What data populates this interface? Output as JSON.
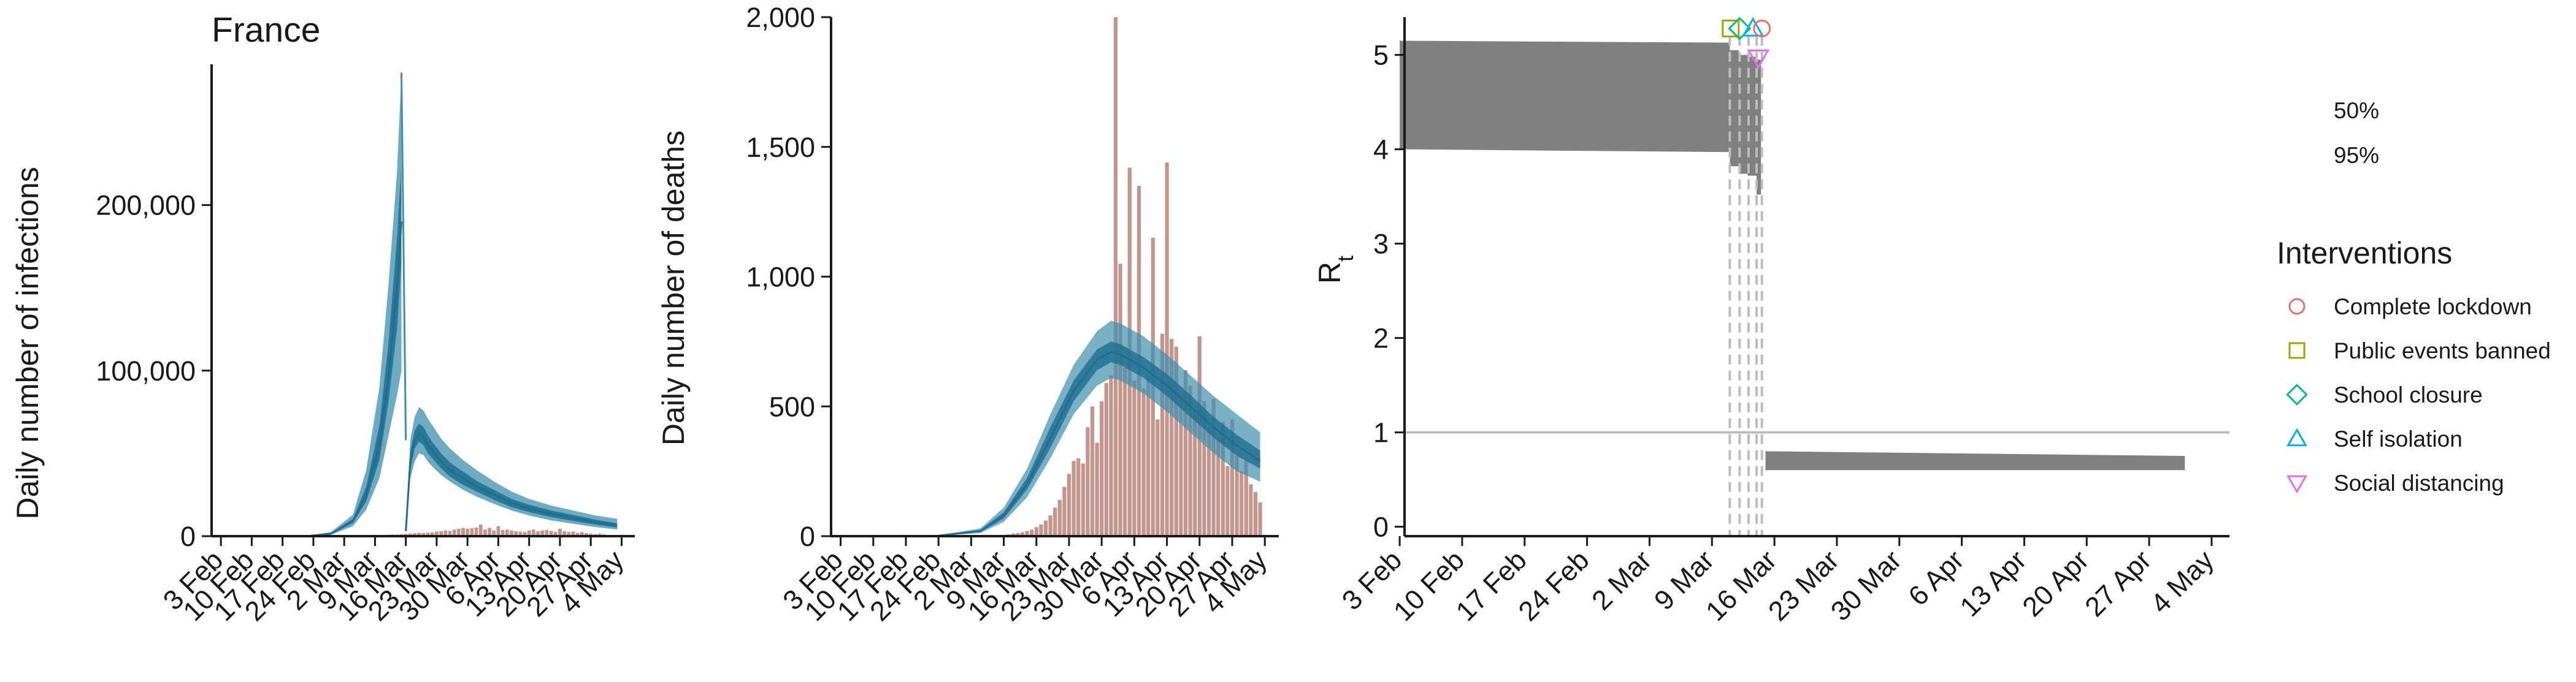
{
  "colors": {
    "band_95": "#3E8FAE",
    "band_50": "#1F6E8F",
    "bar": "#C4958D",
    "rt_band": "#808080",
    "axis": "#1a1a1a",
    "lockdown": "#E8736C",
    "events": "#A3A500",
    "school": "#00BF7D",
    "isolation": "#00B0F6",
    "distancing": "#E76BF3",
    "threshold_line": "#BDBDBD"
  },
  "chart_data": [
    {
      "type": "area",
      "title": "France",
      "ylabel": "Daily number of infections",
      "xlabel": "",
      "x_ticks": [
        "3 Feb",
        "10 Feb",
        "17 Feb",
        "24 Feb",
        "2 Mar",
        "9 Mar",
        "16 Mar",
        "23 Mar",
        "30 Mar",
        "6 Apr",
        "13 Apr",
        "20 Apr",
        "27 Apr",
        "4 May"
      ],
      "y_ticks": [
        "0",
        "100,000",
        "200,000"
      ],
      "ylim": [
        0,
        285000
      ],
      "x_range_days": [
        -1,
        94
      ],
      "infections": {
        "day": [
          0,
          10,
          20,
          25,
          30,
          33,
          36,
          38,
          40,
          41,
          42,
          43,
          44,
          45,
          46,
          47,
          48,
          50,
          52,
          55,
          58,
          62,
          66,
          70,
          75,
          80,
          85,
          90
        ],
        "mean": [
          0,
          5,
          150,
          1500,
          9000,
          25000,
          55000,
          95000,
          150000,
          190000,
          3000,
          45000,
          58000,
          62000,
          60000,
          55000,
          52000,
          45000,
          40000,
          35000,
          30000,
          25000,
          20000,
          16500,
          13500,
          11000,
          8500,
          6500
        ],
        "lo95": [
          0,
          3,
          100,
          900,
          6000,
          16000,
          35000,
          60000,
          85000,
          100000,
          2000,
          35000,
          45000,
          50000,
          49000,
          45000,
          42000,
          37000,
          33000,
          28000,
          24000,
          19500,
          15500,
          12500,
          9500,
          7500,
          5500,
          4000
        ],
        "hi95": [
          0,
          8,
          250,
          2500,
          13000,
          40000,
          90000,
          150000,
          220000,
          280000,
          5000,
          58000,
          72000,
          78000,
          76000,
          71000,
          67000,
          59000,
          53000,
          46000,
          40000,
          33000,
          27000,
          22500,
          18500,
          15500,
          12500,
          10500
        ],
        "lo50": [
          0,
          4,
          130,
          1200,
          8000,
          21000,
          46000,
          80000,
          125000,
          165000,
          2500,
          40000,
          53000,
          57000,
          55000,
          50000,
          47000,
          41000,
          36000,
          31000,
          27000,
          22000,
          17500,
          14500,
          11500,
          9200,
          7000,
          5200
        ],
        "hi50": [
          0,
          6,
          180,
          1900,
          10500,
          30000,
          67000,
          115000,
          180000,
          225000,
          3500,
          51000,
          64000,
          68000,
          66000,
          61000,
          57000,
          50000,
          44500,
          39000,
          33500,
          28000,
          22500,
          19000,
          15500,
          12800,
          10000,
          7800
        ]
      },
      "observed_cases": [
        {
          "day": 36,
          "value": 400
        },
        {
          "day": 37,
          "value": 600
        },
        {
          "day": 38,
          "value": 800
        },
        {
          "day": 39,
          "value": 1000
        },
        {
          "day": 40,
          "value": 900
        },
        {
          "day": 41,
          "value": 1200
        },
        {
          "day": 42,
          "value": 1400
        },
        {
          "day": 43,
          "value": 1600
        },
        {
          "day": 44,
          "value": 1800
        },
        {
          "day": 45,
          "value": 2000
        },
        {
          "day": 46,
          "value": 1900
        },
        {
          "day": 47,
          "value": 2100
        },
        {
          "day": 48,
          "value": 2300
        },
        {
          "day": 49,
          "value": 2800
        },
        {
          "day": 50,
          "value": 3000
        },
        {
          "day": 51,
          "value": 3500
        },
        {
          "day": 52,
          "value": 3200
        },
        {
          "day": 53,
          "value": 4000
        },
        {
          "day": 54,
          "value": 4500
        },
        {
          "day": 55,
          "value": 5000
        },
        {
          "day": 56,
          "value": 4500
        },
        {
          "day": 57,
          "value": 4800
        },
        {
          "day": 58,
          "value": 5200
        },
        {
          "day": 59,
          "value": 7000
        },
        {
          "day": 60,
          "value": 4000
        },
        {
          "day": 61,
          "value": 5000
        },
        {
          "day": 62,
          "value": 3500
        },
        {
          "day": 63,
          "value": 6000
        },
        {
          "day": 64,
          "value": 3800
        },
        {
          "day": 65,
          "value": 4000
        },
        {
          "day": 66,
          "value": 3500
        },
        {
          "day": 67,
          "value": 3000
        },
        {
          "day": 68,
          "value": 2800
        },
        {
          "day": 69,
          "value": 2500
        },
        {
          "day": 70,
          "value": 3500
        },
        {
          "day": 71,
          "value": 4000
        },
        {
          "day": 72,
          "value": 3000
        },
        {
          "day": 73,
          "value": 3500
        },
        {
          "day": 74,
          "value": 3800
        },
        {
          "day": 75,
          "value": 3200
        },
        {
          "day": 76,
          "value": 2500
        },
        {
          "day": 77,
          "value": 4500
        },
        {
          "day": 78,
          "value": 3000
        },
        {
          "day": 79,
          "value": 2500
        },
        {
          "day": 80,
          "value": 2800
        },
        {
          "day": 81,
          "value": 2000
        },
        {
          "day": 82,
          "value": 2500
        },
        {
          "day": 83,
          "value": 1800
        },
        {
          "day": 84,
          "value": 1500
        },
        {
          "day": 85,
          "value": 1200
        },
        {
          "day": 86,
          "value": 1500
        },
        {
          "day": 87,
          "value": 1000
        }
      ]
    },
    {
      "type": "bar",
      "ylabel": "Daily number of deaths",
      "xlabel": "",
      "x_ticks": [
        "3 Feb",
        "10 Feb",
        "17 Feb",
        "24 Feb",
        "2 Mar",
        "9 Mar",
        "16 Mar",
        "23 Mar",
        "30 Mar",
        "6 Apr",
        "13 Apr",
        "20 Apr",
        "27 Apr",
        "4 May"
      ],
      "y_ticks": [
        "0",
        "500",
        "1,000",
        "1,500",
        "2,000"
      ],
      "ylim": [
        0,
        2000
      ],
      "x_range_days": [
        -1,
        94
      ],
      "deaths": [
        {
          "day": 35,
          "value": 5
        },
        {
          "day": 36,
          "value": 7
        },
        {
          "day": 37,
          "value": 10
        },
        {
          "day": 38,
          "value": 12
        },
        {
          "day": 39,
          "value": 15
        },
        {
          "day": 40,
          "value": 20
        },
        {
          "day": 41,
          "value": 25
        },
        {
          "day": 42,
          "value": 35
        },
        {
          "day": 43,
          "value": 45
        },
        {
          "day": 44,
          "value": 60
        },
        {
          "day": 45,
          "value": 80
        },
        {
          "day": 46,
          "value": 110
        },
        {
          "day": 47,
          "value": 140
        },
        {
          "day": 48,
          "value": 190
        },
        {
          "day": 49,
          "value": 240
        },
        {
          "day": 50,
          "value": 290
        },
        {
          "day": 51,
          "value": 300
        },
        {
          "day": 52,
          "value": 280
        },
        {
          "day": 53,
          "value": 420
        },
        {
          "day": 54,
          "value": 500
        },
        {
          "day": 55,
          "value": 360
        },
        {
          "day": 56,
          "value": 520
        },
        {
          "day": 57,
          "value": 590
        },
        {
          "day": 58,
          "value": 620
        },
        {
          "day": 59,
          "value": 2000
        },
        {
          "day": 60,
          "value": 1050
        },
        {
          "day": 61,
          "value": 650
        },
        {
          "day": 62,
          "value": 1420
        },
        {
          "day": 63,
          "value": 600
        },
        {
          "day": 64,
          "value": 1350
        },
        {
          "day": 65,
          "value": 570
        },
        {
          "day": 66,
          "value": 620
        },
        {
          "day": 67,
          "value": 1150
        },
        {
          "day": 68,
          "value": 450
        },
        {
          "day": 69,
          "value": 780
        },
        {
          "day": 70,
          "value": 1440
        },
        {
          "day": 71,
          "value": 760
        },
        {
          "day": 72,
          "value": 730
        },
        {
          "day": 73,
          "value": 540
        },
        {
          "day": 74,
          "value": 640
        },
        {
          "day": 75,
          "value": 580
        },
        {
          "day": 76,
          "value": 470
        },
        {
          "day": 77,
          "value": 770
        },
        {
          "day": 78,
          "value": 520
        },
        {
          "day": 79,
          "value": 420
        },
        {
          "day": 80,
          "value": 530
        },
        {
          "day": 81,
          "value": 380
        },
        {
          "day": 82,
          "value": 440
        },
        {
          "day": 83,
          "value": 270
        },
        {
          "day": 84,
          "value": 450
        },
        {
          "day": 85,
          "value": 310
        },
        {
          "day": 86,
          "value": 250
        },
        {
          "day": 87,
          "value": 300
        },
        {
          "day": 88,
          "value": 200
        },
        {
          "day": 89,
          "value": 170
        },
        {
          "day": 90,
          "value": 130
        }
      ],
      "fit": {
        "day": [
          20,
          30,
          35,
          40,
          45,
          50,
          55,
          58,
          60,
          62,
          65,
          70,
          75,
          80,
          85,
          90
        ],
        "mean": [
          0,
          20,
          80,
          200,
          380,
          560,
          680,
          710,
          700,
          680,
          650,
          580,
          500,
          420,
          350,
          290
        ],
        "lo95": [
          0,
          12,
          55,
          150,
          300,
          470,
          580,
          610,
          600,
          580,
          550,
          480,
          400,
          320,
          250,
          210
        ],
        "hi95": [
          0,
          30,
          110,
          260,
          470,
          660,
          790,
          830,
          820,
          800,
          770,
          700,
          620,
          540,
          470,
          400
        ],
        "lo50": [
          0,
          16,
          68,
          180,
          340,
          520,
          640,
          670,
          660,
          640,
          610,
          540,
          460,
          380,
          310,
          260
        ],
        "hi50": [
          0,
          24,
          92,
          225,
          420,
          600,
          720,
          750,
          740,
          720,
          690,
          625,
          545,
          460,
          390,
          330
        ]
      }
    },
    {
      "type": "area",
      "ylabel": "R",
      "ylabel_subscript": "t",
      "xlabel": "",
      "x_ticks": [
        "3 Feb",
        "10 Feb",
        "17 Feb",
        "24 Feb",
        "2 Mar",
        "9 Mar",
        "16 Mar",
        "23 Mar",
        "30 Mar",
        "6 Apr",
        "13 Apr",
        "20 Apr",
        "27 Apr",
        "4 May"
      ],
      "y_ticks": [
        "0",
        "1",
        "2",
        "3",
        "4",
        "5"
      ],
      "ylim": [
        -0.1,
        5.4
      ],
      "x_range_days": [
        0,
        95
      ],
      "threshold": 1,
      "rt_segments": [
        {
          "day_start": 2,
          "day_end": 39,
          "lo": 4.0,
          "hi": 5.15,
          "lo_end": 3.97,
          "hi_end": 5.13
        },
        {
          "day_start": 39,
          "day_end": 40,
          "lo": 3.82,
          "hi": 5.05
        },
        {
          "day_start": 40,
          "day_end": 41,
          "lo": 3.74,
          "hi": 5.0
        },
        {
          "day_start": 41,
          "day_end": 42,
          "lo": 3.72,
          "hi": 4.98
        },
        {
          "day_start": 42,
          "day_end": 42.5,
          "lo": 3.52,
          "hi": 4.95
        },
        {
          "day_start": 43,
          "day_end": 90,
          "lo": 0.6,
          "hi": 0.8,
          "lo_end": 0.6,
          "hi_end": 0.75
        }
      ],
      "intervention_lines_days": [
        39,
        40.1,
        41.1,
        42,
        42.6
      ],
      "interventions": [
        {
          "key": "events",
          "day": 39.1,
          "value": 5.28
        },
        {
          "key": "school",
          "day": 40.1,
          "value": 5.28
        },
        {
          "key": "isolation",
          "day": 41.6,
          "value": 5.28
        },
        {
          "key": "lockdown",
          "day": 42.6,
          "value": 5.28
        },
        {
          "key": "distancing",
          "day": 42.2,
          "value": 4.97
        }
      ]
    }
  ],
  "legend": {
    "bands": [
      {
        "label": "50%",
        "swatch": "band_50"
      },
      {
        "label": "95%",
        "swatch": "band_95"
      }
    ],
    "interventions_title": "Interventions",
    "interventions": [
      {
        "key": "lockdown",
        "label": "Complete lockdown",
        "shape": "circle"
      },
      {
        "key": "events",
        "label": "Public events banned",
        "shape": "square"
      },
      {
        "key": "school",
        "label": "School closure",
        "shape": "diamond"
      },
      {
        "key": "isolation",
        "label": "Self isolation",
        "shape": "triangle-up"
      },
      {
        "key": "distancing",
        "label": "Social distancing",
        "shape": "triangle-down"
      }
    ]
  }
}
